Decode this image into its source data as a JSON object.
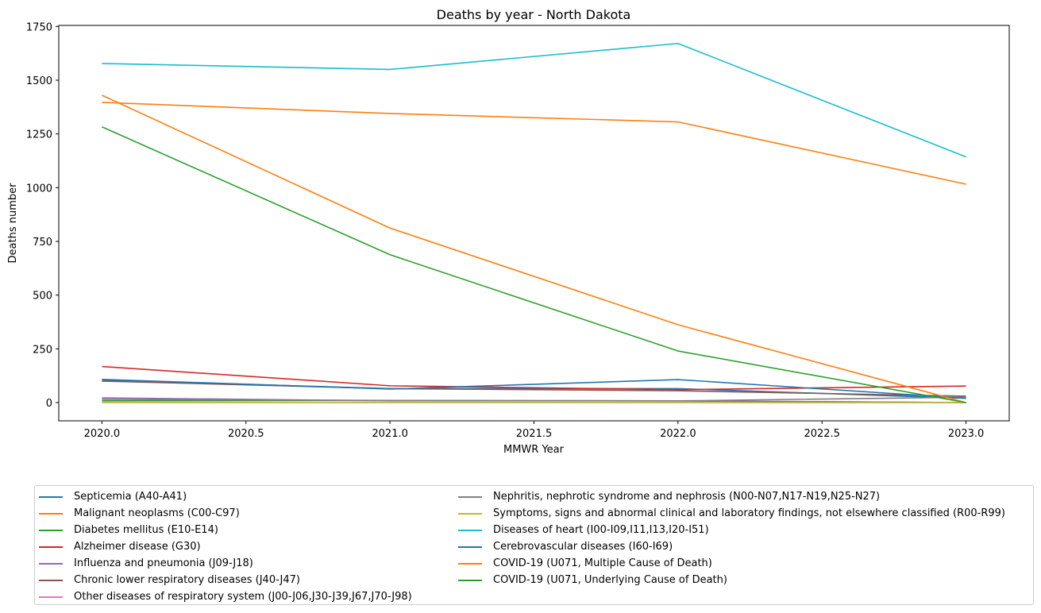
{
  "chart_data": {
    "type": "line",
    "title": "Deaths by year - North Dakota",
    "xlabel": "MMWR Year",
    "ylabel": "Deaths number",
    "x": [
      2020,
      2021,
      2022,
      2023
    ],
    "xlim": [
      2019.85,
      2023.15
    ],
    "ylim": [
      -85,
      1755
    ],
    "x_ticks": [
      "2020.0",
      "2020.5",
      "2021.0",
      "2021.5",
      "2022.0",
      "2022.5",
      "2023.0"
    ],
    "y_ticks": [
      "0",
      "250",
      "500",
      "750",
      "1000",
      "1250",
      "1500",
      "1750"
    ],
    "grid": false,
    "legend_placement": "below",
    "series": [
      {
        "name": "Septicemia (A40-A41)",
        "color": "#1f77b4",
        "values": [
          105,
          65,
          65,
          20
        ]
      },
      {
        "name": "Malignant neoplasms (C00-C97)",
        "color": "#ff7f0e",
        "values": [
          1397,
          1345,
          1306,
          1016
        ]
      },
      {
        "name": "Diabetes mellitus (E10-E14)",
        "color": "#2ca02c",
        "values": [
          8,
          10,
          8,
          0
        ]
      },
      {
        "name": "Alzheimer disease (G30)",
        "color": "#d62728",
        "values": [
          168,
          78,
          60,
          77
        ]
      },
      {
        "name": "Influenza and pneumonia (J09-J18)",
        "color": "#9467bd",
        "values": [
          22,
          8,
          8,
          0
        ]
      },
      {
        "name": "Chronic lower respiratory diseases (J40-J47)",
        "color": "#8c564b",
        "values": [
          100,
          65,
          55,
          30
        ]
      },
      {
        "name": "Other diseases of respiratory system (J00-J06,J30-J39,J67,J70-J98)",
        "color": "#e377c2",
        "values": [
          0,
          0,
          0,
          0
        ]
      },
      {
        "name": "Nephritis, nephrotic syndrome and nephrosis (N00-N07,N17-N19,N25-N27)",
        "color": "#7f7f7f",
        "values": [
          15,
          10,
          8,
          25
        ]
      },
      {
        "name": "Symptoms, signs and abnormal clinical and laboratory findings, not elsewhere classified (R00-R99)",
        "color": "#bcbd22",
        "values": [
          0,
          0,
          0,
          0
        ]
      },
      {
        "name": "Diseases of heart (I00-I09,I11,I13,I20-I51)",
        "color": "#17becf",
        "values": [
          1578,
          1550,
          1671,
          1143
        ]
      },
      {
        "name": "Cerebrovascular diseases (I60-I69)",
        "color": "#1f77b4",
        "values": [
          108,
          63,
          107,
          20
        ]
      },
      {
        "name": "COVID-19 (U071, Multiple Cause of Death)",
        "color": "#ff7f0e",
        "values": [
          1430,
          812,
          362,
          0
        ]
      },
      {
        "name": "COVID-19 (U071, Underlying Cause of Death)",
        "color": "#2ca02c",
        "values": [
          1283,
          688,
          240,
          0
        ]
      }
    ]
  }
}
